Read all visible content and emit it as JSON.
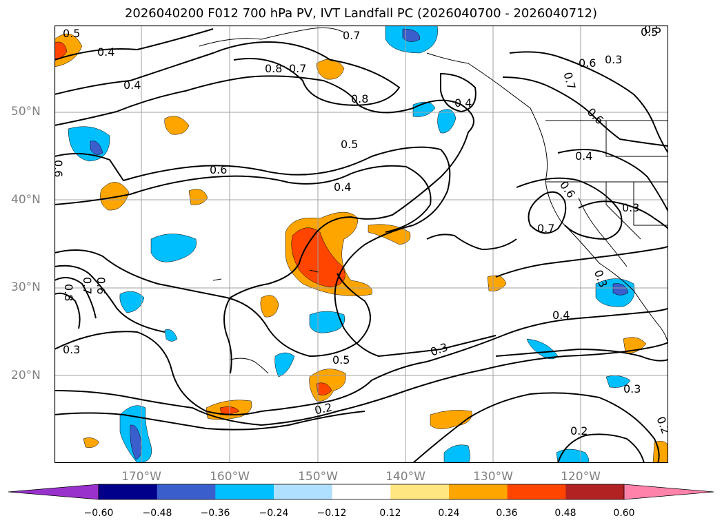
{
  "title": "2026040200 F012 700 hPa PV, IVT Landfall PC (2026040700 - 2026040712)",
  "lat_labels": [
    "50°N",
    "40°N",
    "30°N",
    "20°N"
  ],
  "lon_labels": [
    "170°W",
    "160°W",
    "150°W",
    "140°W",
    "130°W",
    "120°W"
  ],
  "contour_labels": [
    "0.5",
    "0.4",
    "0.4",
    "0.6",
    "0.8",
    "0.7",
    "0.8",
    "0.4",
    "0.6",
    "0.5",
    "0.4",
    "0.7",
    "0.6",
    "0.7",
    "0.5",
    "0.6",
    "0.3",
    "0.4",
    "0.6",
    "0.3",
    "0.7",
    "0.8",
    "0.7",
    "0.6",
    "0.3",
    "0.4",
    "0.3",
    "0.5",
    "0.3",
    "0.2",
    "0.2",
    "0.3",
    "0.2",
    "0.5"
  ],
  "colorbar": {
    "ticks": [
      "−0.60",
      "−0.48",
      "−0.36",
      "−0.24",
      "−0.12",
      "0.12",
      "0.24",
      "0.36",
      "0.48",
      "0.60"
    ],
    "colors": [
      "#9932cc",
      "#00008b",
      "#3a5fcd",
      "#00bfff",
      "#b0e0ff",
      "#ffffff",
      "#ffe680",
      "#ffa500",
      "#ff4500",
      "#b22222",
      "#ff82ab"
    ]
  }
}
